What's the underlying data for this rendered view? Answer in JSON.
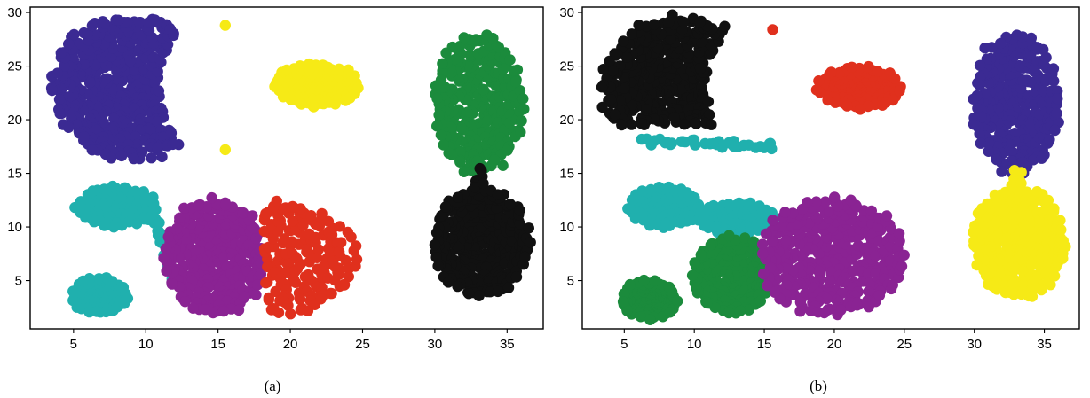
{
  "figure": {
    "caption": ""
  },
  "colors": {
    "purple_dark": "#3b2a93",
    "yellow": "#f6ea16",
    "green": "#1b8b3c",
    "teal": "#20b0ae",
    "magenta": "#8a2393",
    "red": "#e0301d",
    "black": "#111111"
  },
  "chart_data": [
    {
      "type": "scatter",
      "panel_label": "(a)",
      "title": "",
      "xlabel": "",
      "ylabel": "",
      "xlim": [
        2,
        37.5
      ],
      "ylim": [
        0.5,
        30.5
      ],
      "xticks": [
        5,
        10,
        15,
        20,
        25,
        30,
        35
      ],
      "yticks": [
        5,
        10,
        15,
        20,
        25,
        30
      ],
      "grid": false,
      "clusters": [
        {
          "color": "purple_dark",
          "shape": "crescent",
          "cx": 9,
          "cy": 23,
          "w": 5.5,
          "h": 6.6,
          "innerCx": 16.5,
          "innerR": 6.5,
          "n": 300
        },
        {
          "color": "yellow",
          "shape": "points",
          "points": [
            [
              15.5,
              28.8
            ],
            [
              15.5,
              17.2
            ]
          ]
        },
        {
          "color": "yellow",
          "shape": "ellipse",
          "cx": 21.8,
          "cy": 23.2,
          "w": 3,
          "h": 2,
          "n": 70
        },
        {
          "color": "green",
          "shape": "ellipse",
          "cx": 33,
          "cy": 21.5,
          "w": 3.1,
          "h": 6.5,
          "n": 210
        },
        {
          "color": "green",
          "shape": "band",
          "x1": 32.8,
          "y1": 17.0,
          "x2": 33.2,
          "y2": 15.3,
          "n": 8
        },
        {
          "color": "black",
          "shape": "band",
          "x1": 33.1,
          "y1": 15.5,
          "x2": 33.1,
          "y2": 12.5,
          "n": 10
        },
        {
          "color": "black",
          "shape": "ellipse",
          "cx": 33.2,
          "cy": 8.6,
          "w": 3.3,
          "h": 5.2,
          "n": 230
        },
        {
          "color": "teal",
          "shape": "ellipse",
          "cx": 8.0,
          "cy": 11.9,
          "w": 2.8,
          "h": 1.9,
          "n": 70
        },
        {
          "color": "teal",
          "shape": "band",
          "x1": 10.5,
          "y1": 11.0,
          "x2": 11.8,
          "y2": 5.0,
          "n": 22
        },
        {
          "color": "teal",
          "shape": "ellipse",
          "cx": 6.8,
          "cy": 3.6,
          "w": 1.9,
          "h": 1.7,
          "n": 65
        },
        {
          "color": "magenta",
          "shape": "ellipse",
          "cx": 14.8,
          "cy": 7.2,
          "w": 3.6,
          "h": 5.4,
          "xmax": 18.2,
          "n": 250
        },
        {
          "color": "red",
          "shape": "ellipse",
          "cx": 18.7,
          "cy": 7.0,
          "w": 6,
          "h": 5.3,
          "xmin": 18.2,
          "n": 240
        }
      ]
    },
    {
      "type": "scatter",
      "panel_label": "(b)",
      "title": "",
      "xlabel": "",
      "ylabel": "",
      "xlim": [
        2,
        37.5
      ],
      "ylim": [
        0.5,
        30.5
      ],
      "xticks": [
        5,
        10,
        15,
        20,
        25,
        30,
        35
      ],
      "yticks": [
        5,
        10,
        15,
        20,
        25,
        30
      ],
      "grid": false,
      "clusters": [
        {
          "color": "black",
          "shape": "crescent",
          "cx": 9,
          "cy": 23,
          "w": 5.5,
          "h": 6.6,
          "innerCx": 16.5,
          "innerR": 6.5,
          "ymin": 19.5,
          "n": 270
        },
        {
          "color": "red",
          "shape": "points",
          "points": [
            [
              15.6,
              28.4
            ]
          ]
        },
        {
          "color": "teal",
          "shape": "band",
          "x1": 6.5,
          "y1": 18.0,
          "x2": 15.8,
          "y2": 17.5,
          "n": 35
        },
        {
          "color": "red",
          "shape": "ellipse",
          "cx": 21.8,
          "cy": 23.0,
          "w": 3,
          "h": 2,
          "n": 70
        },
        {
          "color": "purple_dark",
          "shape": "ellipse",
          "cx": 33,
          "cy": 21.5,
          "w": 3.1,
          "h": 6.5,
          "n": 210
        },
        {
          "color": "purple_dark",
          "shape": "band",
          "x1": 32.8,
          "y1": 17.0,
          "x2": 33.0,
          "y2": 15.3,
          "n": 8
        },
        {
          "color": "yellow",
          "shape": "band",
          "x1": 33.1,
          "y1": 15.5,
          "x2": 33.1,
          "y2": 12.5,
          "n": 12
        },
        {
          "color": "yellow",
          "shape": "ellipse",
          "cx": 33.2,
          "cy": 8.6,
          "w": 3.3,
          "h": 5.2,
          "n": 230
        },
        {
          "color": "teal",
          "shape": "ellipse",
          "cx": 7.8,
          "cy": 11.9,
          "w": 2.6,
          "h": 1.9,
          "n": 70
        },
        {
          "color": "teal",
          "shape": "ellipse",
          "cx": 13.0,
          "cy": 10.8,
          "w": 2.8,
          "h": 1.5,
          "n": 45
        },
        {
          "color": "green",
          "shape": "ellipse",
          "cx": 6.8,
          "cy": 3.2,
          "w": 2.0,
          "h": 1.8,
          "n": 70
        },
        {
          "color": "green",
          "shape": "ellipse",
          "cx": 12.7,
          "cy": 5.5,
          "w": 2.9,
          "h": 3.6,
          "n": 110
        },
        {
          "color": "magenta",
          "shape": "ellipse",
          "cx": 19.8,
          "cy": 7.2,
          "w": 5.3,
          "h": 5.4,
          "xmin": 14.8,
          "n": 300
        }
      ]
    }
  ]
}
